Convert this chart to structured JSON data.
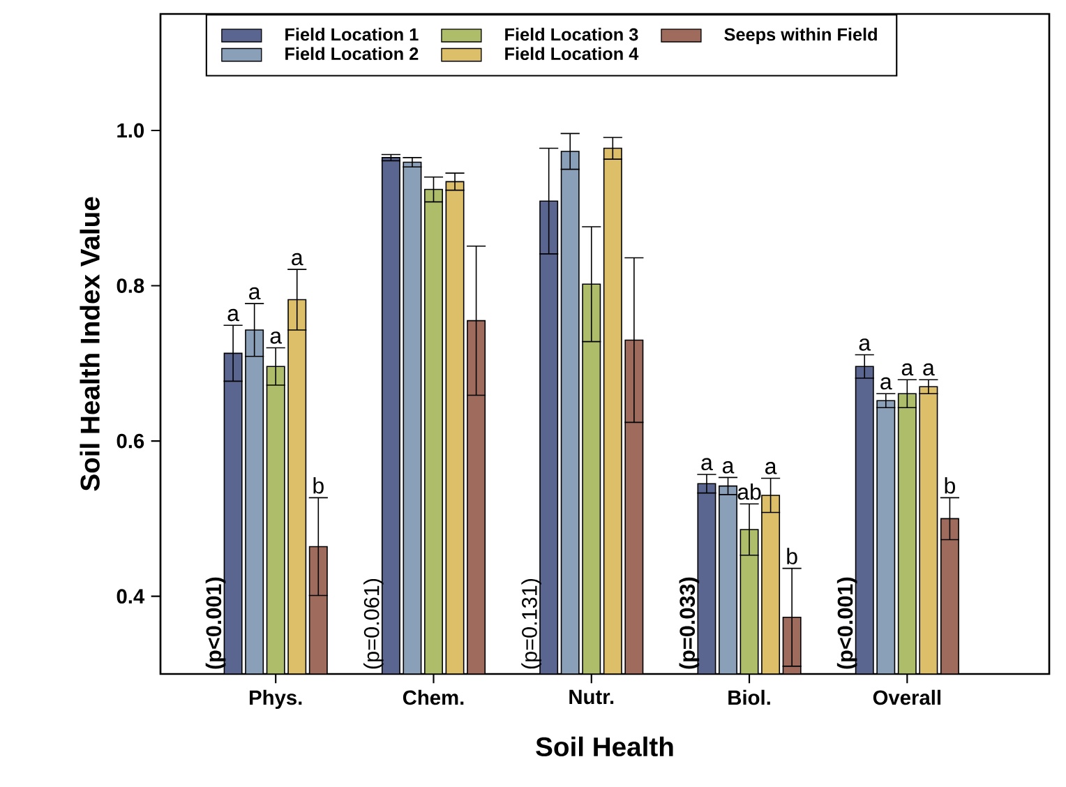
{
  "chart_data": {
    "type": "bar",
    "xlabel": "Soil Health",
    "ylabel": "Soil Health Index Value",
    "categories": [
      "Phys.",
      "Chem.",
      "Nutr.",
      "Biol.",
      "Overall"
    ],
    "ylim": [
      0.3,
      1.15
    ],
    "yticks": [
      {
        "value": 0.4,
        "label": "0.4"
      },
      {
        "value": 0.6,
        "label": "0.6"
      },
      {
        "value": 0.8,
        "label": "0.8"
      },
      {
        "value": 1.0,
        "label": "1.0"
      }
    ],
    "legend": "top",
    "grid": false,
    "series": [
      {
        "name": "Field Location 1",
        "color": "#5a6590",
        "values": [
          0.713,
          0.965,
          0.909,
          0.545,
          0.696
        ],
        "errors": [
          0.036,
          0.004,
          0.068,
          0.012,
          0.015
        ],
        "value_labels": [
          "a",
          null,
          null,
          "a",
          "a"
        ]
      },
      {
        "name": "Field Location 2",
        "color": "#8aa0b8",
        "values": [
          0.743,
          0.959,
          0.973,
          0.542,
          0.652
        ],
        "errors": [
          0.034,
          0.006,
          0.023,
          0.011,
          0.009
        ],
        "value_labels": [
          "a",
          null,
          null,
          "a",
          "a"
        ]
      },
      {
        "name": "Field Location 3",
        "color": "#aebd6a",
        "values": [
          0.696,
          0.924,
          0.802,
          0.486,
          0.661
        ],
        "errors": [
          0.024,
          0.016,
          0.074,
          0.033,
          0.018
        ],
        "value_labels": [
          "a",
          null,
          null,
          "ab",
          "a"
        ]
      },
      {
        "name": "Field Location 4",
        "color": "#dcbf68",
        "values": [
          0.782,
          0.934,
          0.977,
          0.53,
          0.67
        ],
        "errors": [
          0.039,
          0.011,
          0.014,
          0.022,
          0.009
        ],
        "value_labels": [
          "a",
          null,
          null,
          "a",
          "a"
        ]
      },
      {
        "name": "Seeps within Field",
        "color": "#9e6b5c",
        "values": [
          0.464,
          0.755,
          0.73,
          0.373,
          0.5
        ],
        "errors": [
          0.063,
          0.096,
          0.106,
          0.063,
          0.027
        ],
        "value_labels": [
          "b",
          null,
          null,
          "b",
          "b"
        ]
      }
    ],
    "annotations": [
      {
        "text": "**(p<0.001)**",
        "x": "Phys.",
        "y": 0.3
      },
      {
        "text": "(p=0.061)",
        "x": "Chem.",
        "y": 0.3
      },
      {
        "text": "(p=0.131)",
        "x": "Nutr.",
        "y": 0.3
      },
      {
        "text": "**(p=0.033)**",
        "x": "Biol.",
        "y": 0.3
      },
      {
        "text": "**(p<0.001)**",
        "x": "Overall",
        "y": 0.3
      }
    ]
  }
}
